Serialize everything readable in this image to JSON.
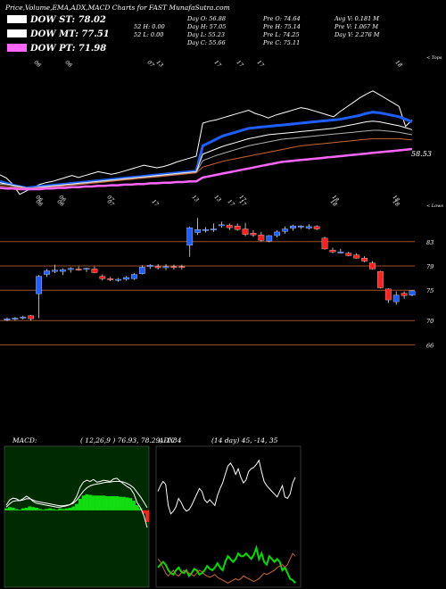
{
  "header": {
    "title": "Price,Volume,EMA,ADX,MACD Charts for FAST MunafaSutra.com",
    "legend": [
      {
        "label": "DOW ST: 78.02",
        "color": "#ffffff"
      },
      {
        "label": "DOW MT: 77.51",
        "color": "#ffffff"
      },
      {
        "label": "DOW PT: 71.98",
        "color": "#ff66ff"
      }
    ],
    "stats": [
      [
        "Day O: 56.88",
        "Pre O: 74.64",
        "Avg V: 0.181 M"
      ],
      [
        "52 H: 0.00",
        "Day H: 57.05",
        "Pre H: 75.14",
        "Pre V: 1.067 M"
      ],
      [
        "52 L: 0.00",
        "Day L: 55.23",
        "Pre L: 74.25",
        "Day V: 2.276 M"
      ],
      [
        "Day C: 55.66",
        "Pre C: 75.11"
      ]
    ]
  },
  "chart_data": [
    {
      "type": "line",
      "panel": "ema",
      "x_tick_labels": [
        "06",
        "06",
        "07",
        "17",
        "17",
        "17",
        "18",
        "13"
      ],
      "x_tick_labels_bottom": [
        "06",
        "06",
        "07",
        "17",
        "17",
        "17",
        "18",
        "18"
      ],
      "corner_label": "< Tops",
      "last_value_label": "58.53",
      "series": [
        {
          "color": "#ffffff",
          "values": [
            76,
            75.5,
            74.5,
            73,
            73.5,
            74,
            74.5,
            74.8,
            75,
            75.3,
            75.6,
            75.9,
            75.6,
            75.9,
            76.2,
            76.5,
            76.3,
            76.1,
            76.3,
            76.6,
            76.9,
            77.2,
            77.5,
            77.3,
            77.1,
            77.3,
            77.6,
            78,
            78.3,
            78.6,
            78.9,
            84,
            84.3,
            84.5,
            84.8,
            85.1,
            85.4,
            85.7,
            86,
            85.5,
            85.2,
            84.8,
            85.2,
            85.5,
            85.8,
            86.1,
            86.4,
            86.2,
            85.9,
            85.6,
            85.3,
            85,
            85.8,
            86.5,
            87.2,
            87.9,
            88.5,
            89,
            88.4,
            87.8,
            87.2,
            86.6,
            83.5,
            84.5
          ]
        },
        {
          "color": "#1f5fff",
          "values": [
            75,
            74.7,
            74.4,
            74.2,
            74,
            74.1,
            74.2,
            74.3,
            74.4,
            74.5,
            74.6,
            74.7,
            74.8,
            74.9,
            75,
            75.1,
            75.2,
            75.3,
            75.4,
            75.5,
            75.6,
            75.7,
            75.8,
            75.9,
            76,
            76.1,
            76.2,
            76.3,
            76.4,
            76.5,
            76.6,
            80.5,
            81,
            81.5,
            82,
            82.3,
            82.6,
            82.9,
            83.2,
            83.3,
            83.4,
            83.5,
            83.6,
            83.7,
            83.8,
            83.9,
            84,
            84.1,
            84.2,
            84.3,
            84.4,
            84.5,
            84.6,
            84.8,
            85,
            85.2,
            85.5,
            85.7,
            85.6,
            85.4,
            85.2,
            85,
            84.6,
            84.2
          ]
        },
        {
          "color": "#ffffff",
          "values": [
            74.8,
            74.6,
            74.4,
            74.2,
            74,
            74,
            74.1,
            74.2,
            74.3,
            74.4,
            74.5,
            74.6,
            74.7,
            74.8,
            74.9,
            75,
            75.1,
            75.2,
            75.3,
            75.4,
            75.5,
            75.6,
            75.7,
            75.8,
            75.9,
            76,
            76.1,
            76.2,
            76.3,
            76.4,
            76.5,
            79.2,
            79.6,
            80,
            80.4,
            80.7,
            81,
            81.3,
            81.6,
            81.8,
            82,
            82.2,
            82.3,
            82.4,
            82.5,
            82.6,
            82.7,
            82.8,
            82.9,
            83,
            83.1,
            83.2,
            83.4,
            83.6,
            83.8,
            84,
            84.2,
            84.3,
            84.2,
            84,
            83.8,
            83.6,
            83.3,
            83
          ]
        },
        {
          "color": "#b0b0b0",
          "values": [
            74.6,
            74.5,
            74.3,
            74.1,
            74,
            74,
            74,
            74.1,
            74.2,
            74.3,
            74.4,
            74.5,
            74.6,
            74.7,
            74.8,
            74.9,
            75,
            75.1,
            75.2,
            75.3,
            75.4,
            75.5,
            75.6,
            75.7,
            75.8,
            75.9,
            76,
            76.1,
            76.2,
            76.3,
            76.4,
            78.2,
            78.6,
            79,
            79.3,
            79.6,
            79.9,
            80.2,
            80.5,
            80.7,
            80.9,
            81.1,
            81.3,
            81.5,
            81.6,
            81.7,
            81.8,
            81.9,
            82,
            82.1,
            82.2,
            82.3,
            82.4,
            82.5,
            82.6,
            82.7,
            82.8,
            82.9,
            82.9,
            82.8,
            82.7,
            82.6,
            82.4,
            82.2
          ]
        },
        {
          "color": "#cc6633",
          "values": [
            74.3,
            74.2,
            74.1,
            74,
            73.9,
            73.9,
            74,
            74,
            74.1,
            74.2,
            74.3,
            74.4,
            74.5,
            74.6,
            74.7,
            74.8,
            74.9,
            75,
            75.1,
            75.2,
            75.3,
            75.4,
            75.5,
            75.6,
            75.7,
            75.8,
            75.9,
            76,
            76.1,
            76.2,
            76.3,
            77.2,
            77.5,
            77.8,
            78.1,
            78.3,
            78.5,
            78.7,
            78.9,
            79.1,
            79.3,
            79.5,
            79.7,
            79.9,
            80.1,
            80.3,
            80.5,
            80.6,
            80.7,
            80.8,
            80.9,
            81,
            81.1,
            81.2,
            81.3,
            81.4,
            81.5,
            81.6,
            81.6,
            81.6,
            81.6,
            81.6,
            81.5,
            81.4
          ]
        },
        {
          "color": "#ff66ff",
          "values": [
            74,
            73.9,
            73.9,
            73.8,
            73.8,
            73.8,
            73.8,
            73.9,
            73.9,
            74,
            74,
            74.1,
            74.1,
            74.2,
            74.2,
            74.3,
            74.3,
            74.4,
            74.4,
            74.5,
            74.5,
            74.6,
            74.6,
            74.7,
            74.7,
            74.8,
            74.8,
            74.9,
            74.9,
            75,
            75,
            75.6,
            75.8,
            76,
            76.2,
            76.4,
            76.6,
            76.8,
            77,
            77.2,
            77.4,
            77.6,
            77.8,
            78,
            78.1,
            78.2,
            78.3,
            78.4,
            78.5,
            78.6,
            78.7,
            78.8,
            78.9,
            79,
            79.1,
            79.2,
            79.3,
            79.4,
            79.5,
            79.6,
            79.7,
            79.8,
            79.9,
            80
          ]
        }
      ]
    },
    {
      "type": "candlestick",
      "panel": "price",
      "corner_label": "< Lows",
      "x_tick_labels": [
        "06",
        "06",
        "07",
        "13",
        "13",
        "17",
        "18",
        "18"
      ],
      "y_levels": [
        83,
        79,
        75,
        70,
        66
      ],
      "candles": [
        [
          70.1,
          70.5,
          69.9,
          70.3
        ],
        [
          70.2,
          70.6,
          70,
          70.4
        ],
        [
          70.4,
          70.8,
          70.2,
          70.6
        ],
        [
          70.8,
          70.9,
          70,
          70.3
        ],
        [
          74.4,
          77.5,
          70.4,
          77.3
        ],
        [
          77.6,
          78.5,
          77.2,
          78.2
        ],
        [
          78.1,
          79.2,
          77.8,
          78.3
        ],
        [
          78.1,
          78.6,
          77.5,
          78.4
        ],
        [
          78.4,
          78.8,
          77.9,
          78.6
        ],
        [
          78.5,
          78.9,
          78.2,
          78.4
        ],
        [
          78.5,
          78.7,
          78,
          78.6
        ],
        [
          78.5,
          78.9,
          77.8,
          77.9
        ],
        [
          77.3,
          77.6,
          76.6,
          76.9
        ],
        [
          76.9,
          77.2,
          76.5,
          76.8
        ],
        [
          76.7,
          77,
          76.4,
          76.8
        ],
        [
          76.8,
          77.3,
          76.6,
          77.1
        ],
        [
          76.9,
          77.8,
          76.7,
          77.6
        ],
        [
          77.7,
          79.1,
          77.6,
          78.8
        ],
        [
          78.9,
          79.3,
          78.5,
          79.1
        ],
        [
          78.9,
          79.3,
          78.4,
          78.7
        ],
        [
          78.7,
          79.3,
          78.3,
          78.9
        ],
        [
          78.9,
          79.2,
          78.4,
          78.8
        ],
        [
          78.9,
          79.2,
          78.4,
          78.8
        ],
        [
          82.4,
          85.5,
          80.5,
          85.3
        ],
        [
          84.5,
          86.9,
          84.1,
          85
        ],
        [
          85,
          85.4,
          84.5,
          85
        ],
        [
          85,
          86,
          84.6,
          85.1
        ],
        [
          85.7,
          86.3,
          85.3,
          85.8
        ],
        [
          85.7,
          86,
          84.9,
          85.3
        ],
        [
          85.6,
          86,
          84.8,
          85
        ],
        [
          85.1,
          86.1,
          83.9,
          84.2
        ],
        [
          84.4,
          84.9,
          83.8,
          84.1
        ],
        [
          84.1,
          84.6,
          83,
          83.2
        ],
        [
          83.1,
          84.1,
          82.9,
          84
        ],
        [
          84,
          84.9,
          83.7,
          84.6
        ],
        [
          84.7,
          85.5,
          84.3,
          85.1
        ],
        [
          85.2,
          85.8,
          84.8,
          85.6
        ],
        [
          85.4,
          85.7,
          85.1,
          85.6
        ],
        [
          85.2,
          85.9,
          85,
          85.5
        ],
        [
          85.5,
          85.7,
          84.9,
          85.1
        ],
        [
          83.6,
          83.8,
          81.7,
          81.8
        ],
        [
          81.6,
          82,
          81.1,
          81.3
        ],
        [
          81.2,
          81.8,
          81.1,
          81.3
        ],
        [
          81.1,
          81.3,
          80.6,
          80.7
        ],
        [
          80.8,
          81.1,
          80.2,
          80.3
        ],
        [
          80.3,
          80.6,
          79.6,
          79.8
        ],
        [
          79.5,
          79.8,
          78.4,
          78.5
        ],
        [
          78.1,
          78.2,
          75.3,
          75.4
        ],
        [
          75.2,
          75.3,
          72.9,
          73.4
        ],
        [
          73.1,
          74.8,
          72.6,
          74.2
        ],
        [
          74.5,
          74.8,
          73.6,
          74.1
        ],
        [
          74.2,
          75,
          74,
          74.9
        ]
      ]
    },
    {
      "type": "line",
      "panel": "macd",
      "title": "MACD:",
      "params": "( 12,26,9 ) 76.93, 78.29, -1.84",
      "histogram": [
        0.3,
        0.5,
        0.4,
        0.2,
        0.1,
        0.3,
        0.4,
        0.6,
        0.5,
        0.4,
        0.2,
        0.1,
        0.2,
        0.3,
        0.2,
        0.1,
        0.3,
        0.2,
        0.3,
        0.4,
        0.6,
        1,
        1.8,
        2.3,
        2.5,
        2.4,
        2.3,
        2.3,
        2.3,
        2.3,
        2.2,
        2.2,
        2.2,
        2.2,
        2.1,
        2.1,
        2,
        1.9,
        1.5,
        0.8,
        0.3,
        -0.5,
        -1.8
      ],
      "series": [
        {
          "color": "#ffffff",
          "values": [
            0.8,
            1.6,
            1.9,
            1.8,
            1.5,
            1.8,
            2.2,
            1.9,
            1.4,
            1.1,
            1,
            0.9,
            0.8,
            0.7,
            0.6,
            0.5,
            0.5,
            0.6,
            0.7,
            0.9,
            1.3,
            2.2,
            3.6,
            4.4,
            4.7,
            4.5,
            4.8,
            4.4,
            4.5,
            4.7,
            4.6,
            4.5,
            4.9,
            5,
            4.5,
            4.1,
            3.7,
            3.4,
            2.6,
            1.2,
            0.4,
            -0.8,
            -2.7
          ]
        },
        {
          "color": "#ffffff",
          "values": [
            0.5,
            1,
            1.4,
            1.5,
            1.5,
            1.6,
            1.8,
            1.8,
            1.6,
            1.4,
            1.3,
            1.2,
            1.1,
            1,
            0.9,
            0.8,
            0.7,
            0.7,
            0.8,
            0.9,
            1.1,
            1.6,
            2.3,
            3,
            3.5,
            3.8,
            4,
            4.1,
            4.2,
            4.3,
            4.4,
            4.4,
            4.5,
            4.5,
            4.5,
            4.4,
            4.2,
            3.9,
            3.5,
            2.8,
            2.1,
            1.3,
            0.4
          ]
        }
      ]
    },
    {
      "type": "line",
      "panel": "adx",
      "title": "ADX",
      "params": "(14 day) 45, -14, 35",
      "series": [
        {
          "color": "#ffffff",
          "values": [
            68,
            72,
            75,
            73,
            58,
            52,
            54,
            57,
            63,
            60,
            56,
            54,
            55,
            58,
            62,
            66,
            70,
            68,
            62,
            60,
            62,
            60,
            58,
            65,
            70,
            74,
            80,
            86,
            88,
            85,
            80,
            84,
            78,
            74,
            76,
            82,
            84,
            85,
            87,
            90,
            82,
            75,
            72,
            70,
            68,
            66,
            64,
            68,
            72,
            64,
            63,
            66,
            74,
            78
          ]
        },
        {
          "color": "#00dd00",
          "values": [
            14,
            16,
            18,
            16,
            12,
            10,
            9,
            12,
            14,
            11,
            10,
            12,
            8,
            10,
            13,
            12,
            9,
            10,
            12,
            15,
            13,
            12,
            14,
            17,
            14,
            12,
            18,
            22,
            20,
            18,
            20,
            24,
            22,
            22,
            24,
            22,
            20,
            23,
            28,
            20,
            24,
            18,
            16,
            22,
            20,
            18,
            20,
            18,
            12,
            14,
            10,
            6,
            5,
            3
          ]
        },
        {
          "color": "#cc6633",
          "values": [
            20,
            18,
            14,
            10,
            8,
            10,
            12,
            9,
            8,
            10,
            12,
            11,
            10,
            9,
            8,
            10,
            12,
            11,
            9,
            8,
            7,
            8,
            9,
            7,
            6,
            5,
            4,
            3,
            4,
            5,
            6,
            5,
            6,
            8,
            7,
            6,
            5,
            4,
            5,
            6,
            8,
            10,
            9,
            10,
            11,
            12,
            14,
            15,
            16,
            14,
            16,
            20,
            24,
            22
          ]
        }
      ]
    }
  ]
}
